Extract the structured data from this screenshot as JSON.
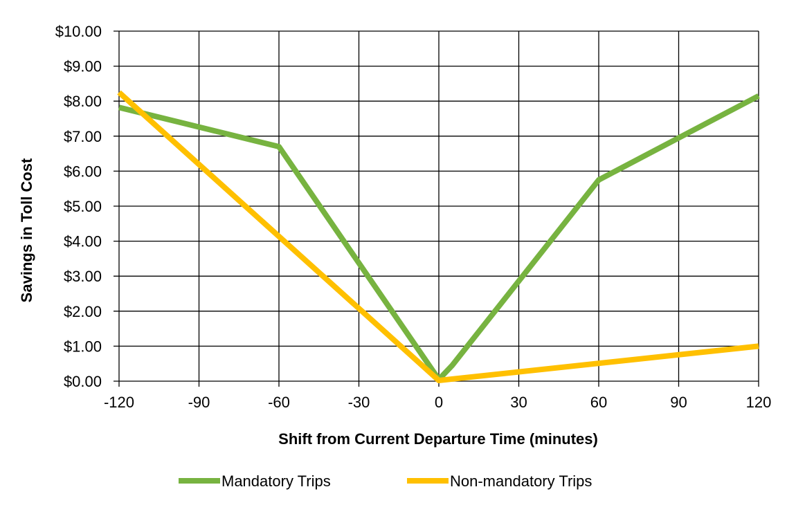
{
  "chart_data": {
    "type": "line",
    "title": "",
    "xlabel": "Shift from Current Departure Time (minutes)",
    "ylabel": "Savings in Toll Cost",
    "xlim": [
      -120,
      120
    ],
    "ylim": [
      0,
      10
    ],
    "xticks": [
      -120,
      -90,
      -60,
      -30,
      0,
      30,
      60,
      90,
      120
    ],
    "xtick_labels": [
      "-120",
      "-90",
      "-60",
      "-30",
      "0",
      "30",
      "60",
      "90",
      "120"
    ],
    "yticks": [
      0,
      1,
      2,
      3,
      4,
      5,
      6,
      7,
      8,
      9,
      10
    ],
    "ytick_labels": [
      "$0.00",
      "$1.00",
      "$2.00",
      "$3.00",
      "$4.00",
      "$5.00",
      "$6.00",
      "$7.00",
      "$8.00",
      "$9.00",
      "$10.00"
    ],
    "grid": true,
    "legend_position": "bottom",
    "series": [
      {
        "name": "Mandatory Trips",
        "color": "#77b340",
        "x": [
          -120,
          -60,
          0,
          5,
          60,
          120
        ],
        "y": [
          7.82,
          6.7,
          0.05,
          0.45,
          5.75,
          8.15
        ]
      },
      {
        "name": "Non-mandatory Trips",
        "color": "#ffc000",
        "x": [
          -120,
          0,
          120
        ],
        "y": [
          8.25,
          0.02,
          1.0
        ]
      }
    ]
  }
}
